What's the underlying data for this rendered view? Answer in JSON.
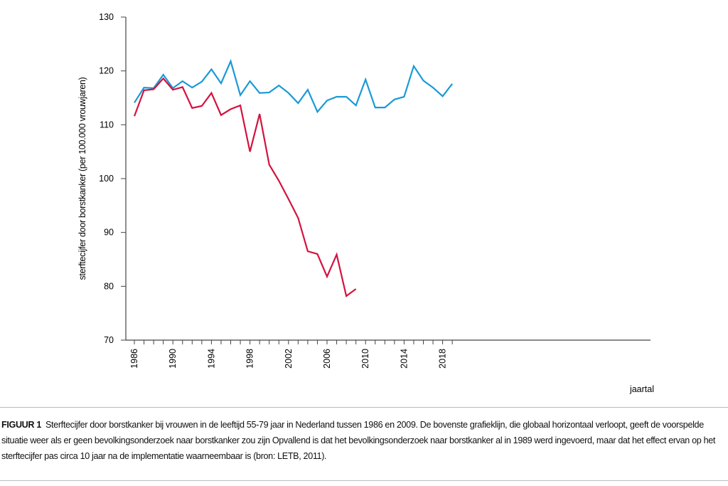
{
  "chart_data": {
    "type": "line",
    "title": "",
    "xlabel": "jaartal",
    "ylabel": "sterftecijfer door borstkanker (per 100.000 vrouwjaren)",
    "ylim": [
      70,
      130
    ],
    "yticks": [
      70,
      80,
      90,
      100,
      110,
      120,
      130
    ],
    "xlim": [
      1986,
      2019
    ],
    "xticks": [
      1986,
      1990,
      1994,
      1998,
      2002,
      2006,
      2010,
      2014,
      2018
    ],
    "grid": false,
    "colors": [
      "#1a9ad6",
      "#d4123e"
    ],
    "series": [
      {
        "x": [
          1986,
          1987,
          1988,
          1989,
          1990,
          1991,
          1992,
          1993,
          1994,
          1995,
          1996,
          1997,
          1998,
          1999,
          2000,
          2001,
          2002,
          2003,
          2004,
          2005,
          2006,
          2007,
          2008,
          2009,
          2010,
          2011,
          2012,
          2013,
          2014,
          2015,
          2016,
          2017,
          2018,
          2019
        ],
        "values": [
          114.1,
          116.9,
          116.8,
          119.3,
          116.8,
          118.1,
          116.9,
          118.0,
          120.3,
          117.7,
          121.8,
          115.5,
          118.1,
          115.9,
          116.0,
          117.3,
          115.9,
          114.0,
          116.5,
          112.4,
          114.5,
          115.2,
          115.2,
          113.6,
          118.4,
          113.2,
          113.2,
          114.7,
          115.2,
          120.9,
          118.2,
          116.9,
          115.3,
          117.6
        ]
      },
      {
        "x": [
          1986,
          1987,
          1988,
          1989,
          1990,
          1991,
          1992,
          1993,
          1994,
          1995,
          1996,
          1997,
          1998,
          1999,
          2000,
          2001,
          2002,
          2003,
          2004,
          2005,
          2006,
          2007,
          2008,
          2009
        ],
        "values": [
          111.6,
          116.4,
          116.6,
          118.6,
          116.5,
          117.0,
          113.1,
          113.5,
          115.9,
          111.8,
          112.9,
          113.6,
          105.0,
          112.0,
          102.6,
          99.6,
          96.2,
          92.7,
          86.5,
          86.0,
          81.8,
          85.9,
          78.2,
          79.5
        ]
      }
    ]
  },
  "caption": {
    "label": "FIGUUR 1",
    "text": "Sterftecijfer door borstkanker bij vrouwen in de leeftijd 55-79 jaar in Nederland tussen 1986 en 2009. De bovenste grafieklijn, die globaal horizontaal verloopt, geeft de voorspelde situatie weer als er geen bevolkingsonderzoek naar borstkanker zou zijn Opvallend is dat het bevolkingsonderzoek naar borstkanker al in 1989 werd ingevoerd, maar dat het effect ervan op het sterftecijfer pas circa 10 jaar na de implementatie waarneembaar is (bron: LETB, 2011)."
  }
}
